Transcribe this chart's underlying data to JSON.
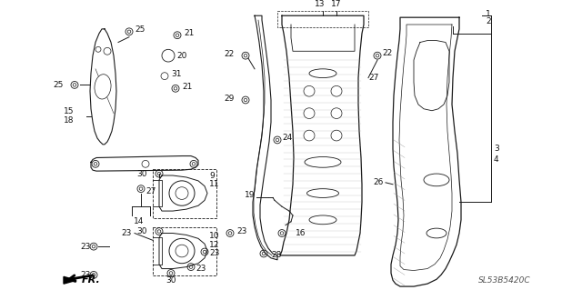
{
  "diagram_code": "SL53B5420C",
  "bg_color": "#ffffff",
  "line_color": "#1a1a1a",
  "label_color": "#111111",
  "label_fontsize": 6.5
}
